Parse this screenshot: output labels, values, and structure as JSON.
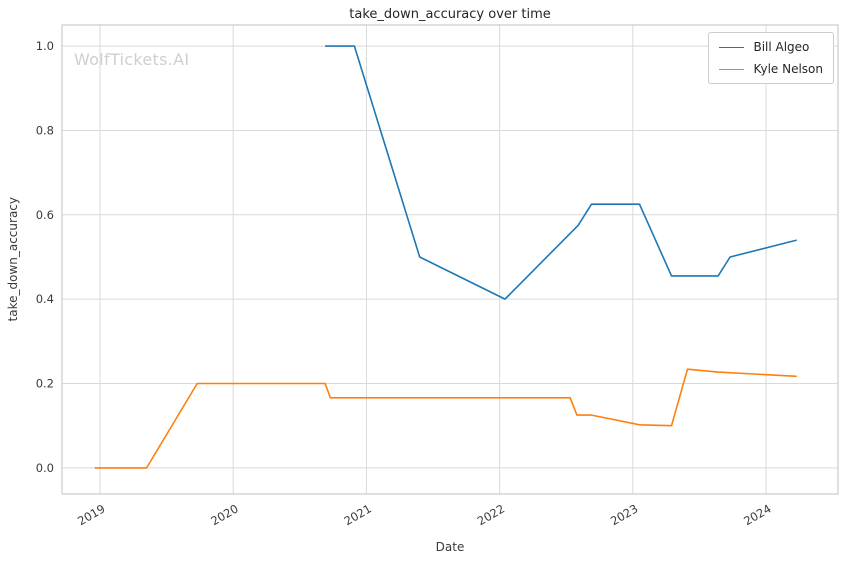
{
  "chart_data": {
    "type": "line",
    "title": "take_down_accuracy over time",
    "xlabel": "Date",
    "ylabel": "take_down_accuracy",
    "watermark": "WolfTickets.AI",
    "xlim": [
      2018.715,
      2024.54
    ],
    "ylim": [
      -0.062,
      1.05
    ],
    "xticks": [
      2019,
      2020,
      2021,
      2022,
      2023,
      2024
    ],
    "yticks": [
      0.0,
      0.2,
      0.4,
      0.6,
      0.8,
      1.0
    ],
    "grid": true,
    "legend_position": "upper right",
    "colors": {
      "grid": "#d9d9d9",
      "border": "#cccccc",
      "tick_label": "#3a3a3a",
      "title": "#262626",
      "watermark": "#cfcfcf"
    },
    "series": [
      {
        "name": "Bill Algeo",
        "color": "#1f77b4",
        "x": [
          2020.69,
          2020.91,
          2021.4,
          2022.04,
          2022.59,
          2022.69,
          2023.05,
          2023.29,
          2023.64,
          2023.73,
          2024.23
        ],
        "y": [
          1.0,
          1.0,
          0.5,
          0.4,
          0.575,
          0.625,
          0.625,
          0.455,
          0.455,
          0.5,
          0.54
        ]
      },
      {
        "name": "Kyle Nelson",
        "color": "#ff7f0e",
        "x": [
          2018.96,
          2019.35,
          2019.73,
          2020.69,
          2020.73,
          2022.53,
          2022.58,
          2022.69,
          2023.05,
          2023.29,
          2023.41,
          2023.64,
          2024.23
        ],
        "y": [
          0.0,
          0.0,
          0.2,
          0.2,
          0.166,
          0.166,
          0.125,
          0.125,
          0.102,
          0.1,
          0.234,
          0.227,
          0.217
        ]
      }
    ]
  }
}
